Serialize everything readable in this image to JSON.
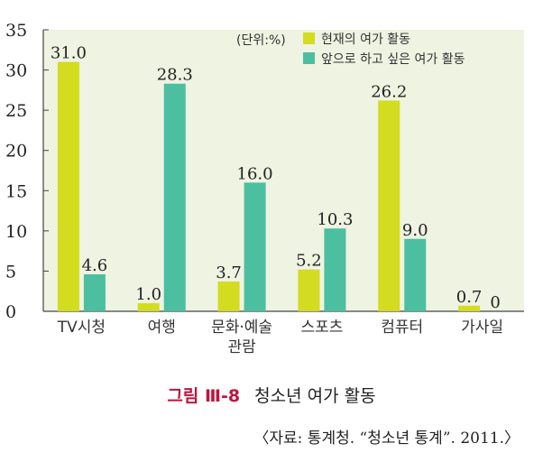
{
  "chart_data": {
    "type": "bar",
    "unit_note": "(단위:%)",
    "categories": [
      "TV시청",
      "여행",
      "문화·예술 관람",
      "스포츠",
      "컴퓨터",
      "가사일"
    ],
    "category_lines": [
      [
        "TV시청"
      ],
      [
        "여행"
      ],
      [
        "문화·예술",
        "관람"
      ],
      [
        "스포츠"
      ],
      [
        "컴퓨터"
      ],
      [
        "가사일"
      ]
    ],
    "series": [
      {
        "name": "현재의 여가 활동",
        "values": [
          31.0,
          1.0,
          3.7,
          5.2,
          26.2,
          0.7
        ],
        "labels": [
          "31.0",
          "1.0",
          "3.7",
          "5.2",
          "26.2",
          "0.7"
        ],
        "color": "#d3dc1e"
      },
      {
        "name": "앞으로 하고 싶은 여가 활동",
        "values": [
          4.6,
          28.3,
          16.0,
          10.3,
          9.0,
          0
        ],
        "labels": [
          "4.6",
          "28.3",
          "16.0",
          "10.3",
          "9.0",
          "0"
        ],
        "color": "#4bbf9f"
      }
    ],
    "ylim": [
      0,
      35
    ],
    "yticks": [
      0,
      5,
      10,
      15,
      20,
      25,
      30,
      35
    ],
    "grid": false,
    "legend": "top-right",
    "plot_background": "#eef3e2"
  },
  "caption": {
    "figure_number": "그림 Ⅲ-8",
    "title": "청소년 여가 활동"
  },
  "source": "〈자료: 통계청. “청소년 통계”. 2011.〉"
}
